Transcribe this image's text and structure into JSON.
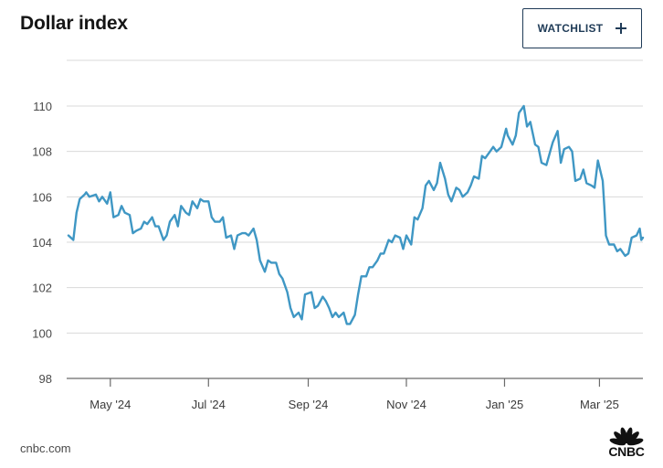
{
  "header": {
    "title": "Dollar index",
    "watchlist_label": "WATCHLIST"
  },
  "footer": {
    "source": "cnbc.com",
    "logo_text": "CNBC"
  },
  "colors": {
    "line": "#3f97c4",
    "grid": "#d9d9d9",
    "axis": "#6b6b6b"
  },
  "chart_data": {
    "type": "line",
    "title": "Dollar index",
    "xlabel": "",
    "ylabel": "",
    "x_ticks": [
      "May '24",
      "Jul '24",
      "Sep '24",
      "Nov '24",
      "Jan '25",
      "Mar '25"
    ],
    "y_ticks": [
      98,
      100,
      102,
      104,
      106,
      108,
      110
    ],
    "ylim": [
      98,
      110
    ],
    "xlim": [
      "2024-04-05",
      "2025-03-28"
    ],
    "grid": true,
    "legend": "none",
    "series": [
      {
        "values": [
          [
            "2024-04-05",
            104.3
          ],
          [
            "2024-04-08",
            104.1
          ],
          [
            "2024-04-10",
            105.3
          ],
          [
            "2024-04-12",
            105.9
          ],
          [
            "2024-04-15",
            106.1
          ],
          [
            "2024-04-16",
            106.2
          ],
          [
            "2024-04-18",
            106.0
          ],
          [
            "2024-04-22",
            106.1
          ],
          [
            "2024-04-24",
            105.8
          ],
          [
            "2024-04-26",
            106.0
          ],
          [
            "2024-04-29",
            105.7
          ],
          [
            "2024-05-01",
            106.2
          ],
          [
            "2024-05-03",
            105.1
          ],
          [
            "2024-05-06",
            105.2
          ],
          [
            "2024-05-08",
            105.6
          ],
          [
            "2024-05-10",
            105.3
          ],
          [
            "2024-05-13",
            105.2
          ],
          [
            "2024-05-15",
            104.4
          ],
          [
            "2024-05-17",
            104.5
          ],
          [
            "2024-05-20",
            104.6
          ],
          [
            "2024-05-22",
            104.9
          ],
          [
            "2024-05-24",
            104.8
          ],
          [
            "2024-05-27",
            105.1
          ],
          [
            "2024-05-29",
            104.7
          ],
          [
            "2024-05-31",
            104.7
          ],
          [
            "2024-06-03",
            104.1
          ],
          [
            "2024-06-05",
            104.3
          ],
          [
            "2024-06-07",
            104.9
          ],
          [
            "2024-06-10",
            105.2
          ],
          [
            "2024-06-12",
            104.7
          ],
          [
            "2024-06-14",
            105.6
          ],
          [
            "2024-06-17",
            105.3
          ],
          [
            "2024-06-19",
            105.2
          ],
          [
            "2024-06-21",
            105.8
          ],
          [
            "2024-06-24",
            105.5
          ],
          [
            "2024-06-26",
            105.9
          ],
          [
            "2024-06-28",
            105.8
          ],
          [
            "2024-07-01",
            105.8
          ],
          [
            "2024-07-03",
            105.1
          ],
          [
            "2024-07-05",
            104.9
          ],
          [
            "2024-07-08",
            104.9
          ],
          [
            "2024-07-10",
            105.1
          ],
          [
            "2024-07-12",
            104.2
          ],
          [
            "2024-07-15",
            104.3
          ],
          [
            "2024-07-17",
            103.7
          ],
          [
            "2024-07-19",
            104.3
          ],
          [
            "2024-07-22",
            104.4
          ],
          [
            "2024-07-24",
            104.4
          ],
          [
            "2024-07-26",
            104.3
          ],
          [
            "2024-07-29",
            104.6
          ],
          [
            "2024-07-31",
            104.1
          ],
          [
            "2024-08-02",
            103.2
          ],
          [
            "2024-08-05",
            102.7
          ],
          [
            "2024-08-07",
            103.2
          ],
          [
            "2024-08-09",
            103.1
          ],
          [
            "2024-08-12",
            103.1
          ],
          [
            "2024-08-14",
            102.6
          ],
          [
            "2024-08-16",
            102.4
          ],
          [
            "2024-08-19",
            101.8
          ],
          [
            "2024-08-21",
            101.1
          ],
          [
            "2024-08-23",
            100.7
          ],
          [
            "2024-08-26",
            100.9
          ],
          [
            "2024-08-28",
            100.6
          ],
          [
            "2024-08-30",
            101.7
          ],
          [
            "2024-09-03",
            101.8
          ],
          [
            "2024-09-05",
            101.1
          ],
          [
            "2024-09-07",
            101.2
          ],
          [
            "2024-09-10",
            101.6
          ],
          [
            "2024-09-12",
            101.4
          ],
          [
            "2024-09-14",
            101.1
          ],
          [
            "2024-09-16",
            100.7
          ],
          [
            "2024-09-18",
            100.9
          ],
          [
            "2024-09-20",
            100.7
          ],
          [
            "2024-09-23",
            100.9
          ],
          [
            "2024-09-25",
            100.4
          ],
          [
            "2024-09-27",
            100.4
          ],
          [
            "2024-09-30",
            100.8
          ],
          [
            "2024-10-02",
            101.7
          ],
          [
            "2024-10-04",
            102.5
          ],
          [
            "2024-10-07",
            102.5
          ],
          [
            "2024-10-09",
            102.9
          ],
          [
            "2024-10-11",
            102.9
          ],
          [
            "2024-10-14",
            103.2
          ],
          [
            "2024-10-16",
            103.5
          ],
          [
            "2024-10-18",
            103.5
          ],
          [
            "2024-10-21",
            104.1
          ],
          [
            "2024-10-23",
            104.0
          ],
          [
            "2024-10-25",
            104.3
          ],
          [
            "2024-10-28",
            104.2
          ],
          [
            "2024-10-30",
            103.7
          ],
          [
            "2024-11-01",
            104.3
          ],
          [
            "2024-11-04",
            103.9
          ],
          [
            "2024-11-06",
            105.1
          ],
          [
            "2024-11-08",
            105.0
          ],
          [
            "2024-11-11",
            105.5
          ],
          [
            "2024-11-13",
            106.5
          ],
          [
            "2024-11-15",
            106.7
          ],
          [
            "2024-11-18",
            106.3
          ],
          [
            "2024-11-20",
            106.6
          ],
          [
            "2024-11-22",
            107.5
          ],
          [
            "2024-11-25",
            106.8
          ],
          [
            "2024-11-27",
            106.1
          ],
          [
            "2024-11-29",
            105.8
          ],
          [
            "2024-12-02",
            106.4
          ],
          [
            "2024-12-04",
            106.3
          ],
          [
            "2024-12-06",
            106.0
          ],
          [
            "2024-12-09",
            106.2
          ],
          [
            "2024-12-11",
            106.5
          ],
          [
            "2024-12-13",
            106.9
          ],
          [
            "2024-12-16",
            106.8
          ],
          [
            "2024-12-18",
            107.8
          ],
          [
            "2024-12-20",
            107.7
          ],
          [
            "2024-12-23",
            108.0
          ],
          [
            "2024-12-25",
            108.2
          ],
          [
            "2024-12-27",
            108.0
          ],
          [
            "2024-12-30",
            108.2
          ],
          [
            "2025-01-02",
            109.0
          ],
          [
            "2025-01-03",
            108.7
          ],
          [
            "2025-01-06",
            108.3
          ],
          [
            "2025-01-08",
            108.7
          ],
          [
            "2025-01-10",
            109.7
          ],
          [
            "2025-01-13",
            110.0
          ],
          [
            "2025-01-15",
            109.1
          ],
          [
            "2025-01-17",
            109.3
          ],
          [
            "2025-01-20",
            108.3
          ],
          [
            "2025-01-22",
            108.2
          ],
          [
            "2025-01-24",
            107.5
          ],
          [
            "2025-01-27",
            107.4
          ],
          [
            "2025-01-29",
            107.9
          ],
          [
            "2025-01-31",
            108.4
          ],
          [
            "2025-02-03",
            108.9
          ],
          [
            "2025-02-05",
            107.5
          ],
          [
            "2025-02-07",
            108.1
          ],
          [
            "2025-02-10",
            108.2
          ],
          [
            "2025-02-12",
            108.0
          ],
          [
            "2025-02-14",
            106.7
          ],
          [
            "2025-02-17",
            106.8
          ],
          [
            "2025-02-19",
            107.2
          ],
          [
            "2025-02-21",
            106.6
          ],
          [
            "2025-02-24",
            106.5
          ],
          [
            "2025-02-26",
            106.4
          ],
          [
            "2025-02-28",
            107.6
          ],
          [
            "2025-03-03",
            106.7
          ],
          [
            "2025-03-04",
            105.6
          ],
          [
            "2025-03-05",
            104.3
          ],
          [
            "2025-03-07",
            103.9
          ],
          [
            "2025-03-10",
            103.9
          ],
          [
            "2025-03-12",
            103.6
          ],
          [
            "2025-03-14",
            103.7
          ],
          [
            "2025-03-17",
            103.4
          ],
          [
            "2025-03-19",
            103.5
          ],
          [
            "2025-03-21",
            104.2
          ],
          [
            "2025-03-24",
            104.3
          ],
          [
            "2025-03-26",
            104.6
          ],
          [
            "2025-03-27",
            104.1
          ],
          [
            "2025-03-28",
            104.2
          ]
        ]
      }
    ]
  }
}
